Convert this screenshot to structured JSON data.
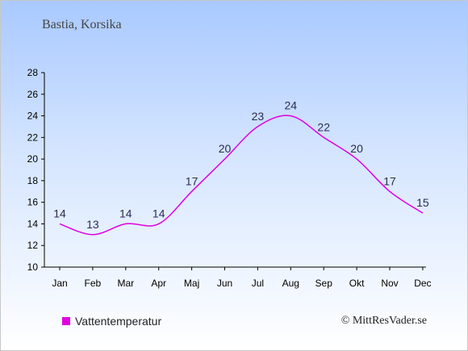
{
  "header": {
    "subtitle": "Bastia, Korsika"
  },
  "legend": {
    "label": "Vattentemperatur",
    "color": "#e000e0"
  },
  "credit": "© MittResVader.se",
  "chart_data": {
    "type": "line",
    "categories": [
      "Jan",
      "Feb",
      "Mar",
      "Apr",
      "Maj",
      "Jun",
      "Jul",
      "Aug",
      "Sep",
      "Okt",
      "Nov",
      "Dec"
    ],
    "series": [
      {
        "name": "Vattentemperatur",
        "values": [
          14,
          13,
          14,
          14,
          17,
          20,
          23,
          24,
          22,
          20,
          17,
          15
        ]
      }
    ],
    "data_labels": [
      "14",
      "13",
      "14",
      "14",
      "17",
      "20",
      "23",
      "24",
      "22",
      "20",
      "17",
      "15"
    ],
    "y_ticks": [
      10,
      12,
      14,
      16,
      18,
      20,
      22,
      24,
      26,
      28
    ],
    "ylim": [
      10,
      28
    ],
    "line_color": "#e000e0",
    "grid": false,
    "legend_position": "bottom-left"
  }
}
